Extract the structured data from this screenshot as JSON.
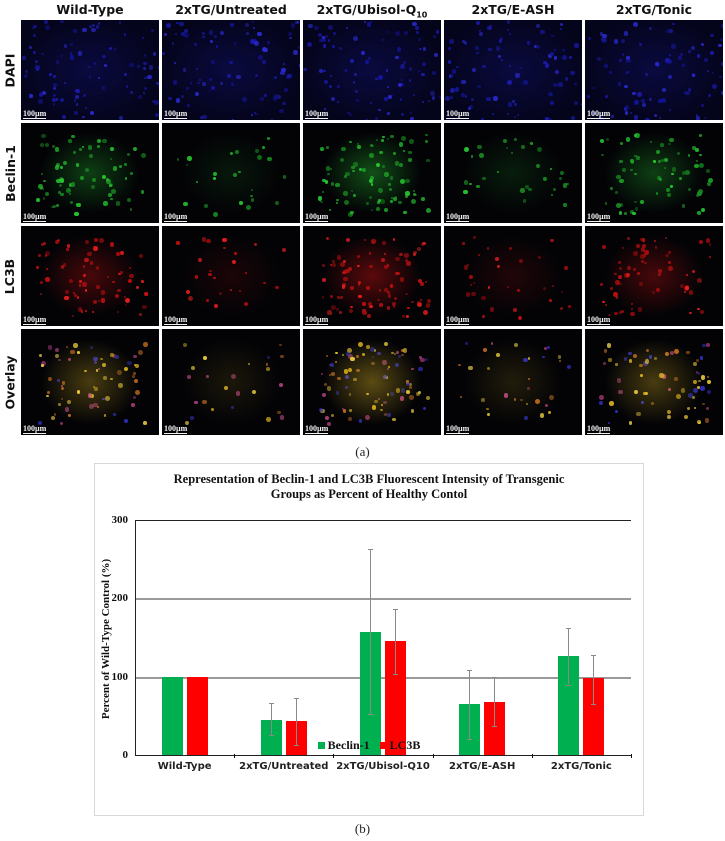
{
  "figure": {
    "columns": [
      "Wild-Type",
      "2xTG/Untreated",
      "2xTG/Ubisol-Q",
      "2xTG/E-ASH",
      "2xTG/Tonic"
    ],
    "column_subscripts": [
      "",
      "",
      "10",
      "",
      ""
    ],
    "rows": [
      "DAPI",
      "Beclin-1",
      "LC3B",
      "Overlay"
    ],
    "scale_bar": "100µm",
    "caption_a": "(a)",
    "caption_b": "(b)",
    "channel_colors": {
      "DAPI": "#1a1aff",
      "Beclin-1": "#22cc22",
      "LC3B": "#ee1111",
      "Overlay": "#e8c020"
    }
  },
  "chart_data": {
    "type": "bar",
    "title": "Representation of Beclin-1 and LC3B Fluorescent Intensity of Transgenic Groups as Percent of Healthy Contol",
    "title_lines": [
      "Representation of Beclin-1 and LC3B Fluorescent Intensity of Transgenic",
      "Groups as Percent of Healthy Contol"
    ],
    "xlabel": "",
    "ylabel": "Percent of Wild-Type Control (%)",
    "ylim": [
      0,
      300
    ],
    "yticks": [
      0,
      100,
      200,
      300
    ],
    "grid": true,
    "legend_position": "bottom",
    "categories": [
      "Wild-Type",
      "2xTG/Untreated",
      "2xTG/Ubisol-Q10",
      "2xTG/E-ASH",
      "2xTG/Tonic"
    ],
    "series": [
      {
        "name": "Beclin-1",
        "color": "#00b050",
        "values": [
          100,
          45,
          157,
          65,
          126
        ],
        "error_low": [
          null,
          25,
          52,
          20,
          90
        ],
        "error_high": [
          null,
          66,
          263,
          108,
          162
        ]
      },
      {
        "name": "LC3B",
        "color": "#ff0000",
        "values": [
          100,
          44,
          145,
          68,
          98
        ],
        "error_low": [
          null,
          13,
          104,
          37,
          65
        ],
        "error_high": [
          null,
          73,
          186,
          99,
          128
        ]
      }
    ]
  }
}
